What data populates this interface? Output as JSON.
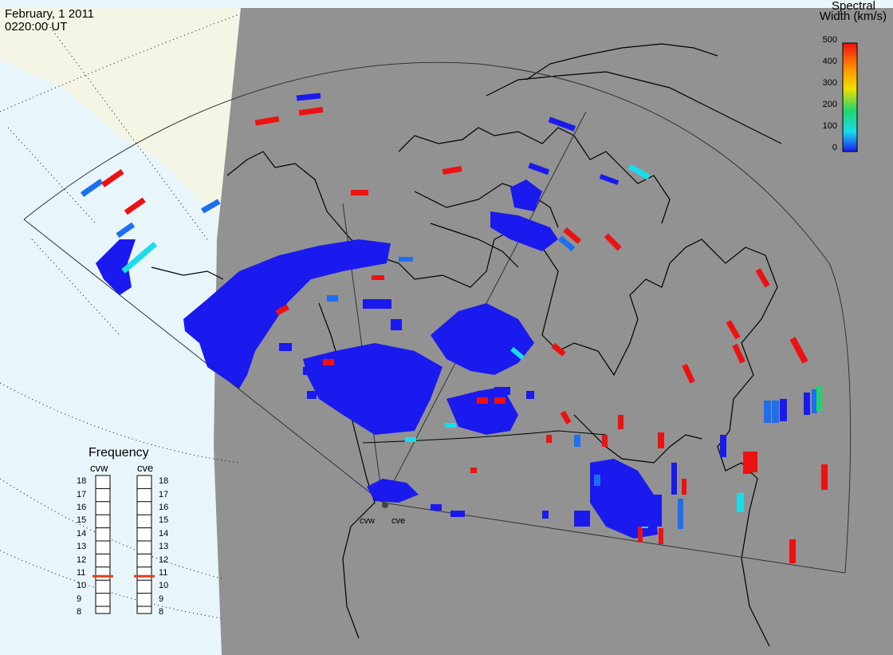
{
  "header": {
    "date": "February, 1 2011",
    "time": "0220:00 UT"
  },
  "colorbar": {
    "title_line1": "Spectral",
    "title_line2": "Width (km/s)",
    "ticks": [
      "500",
      "400",
      "300",
      "200",
      "100",
      "0"
    ]
  },
  "frequency_panel": {
    "title": "Frequency",
    "radars": [
      {
        "name": "cvw",
        "current_mhz": 10.8
      },
      {
        "name": "cve",
        "current_mhz": 10.8
      }
    ],
    "scale": [
      "18",
      "17",
      "16",
      "15",
      "14",
      "13",
      "12",
      "11",
      "10",
      "9",
      "8"
    ]
  },
  "sites": {
    "west": "cvw",
    "east": "cve"
  },
  "colors": {
    "land": "#929292",
    "ocean_outside": "#e8f6fc",
    "land_outside": "#f5f5e6",
    "echo_low": "#1a1aee",
    "echo_mid_low": "#1e6ef0",
    "echo_cyan": "#19dcec",
    "echo_green": "#22d46c",
    "echo_high": "#ee1111",
    "freq_marker": "#e0401a"
  }
}
